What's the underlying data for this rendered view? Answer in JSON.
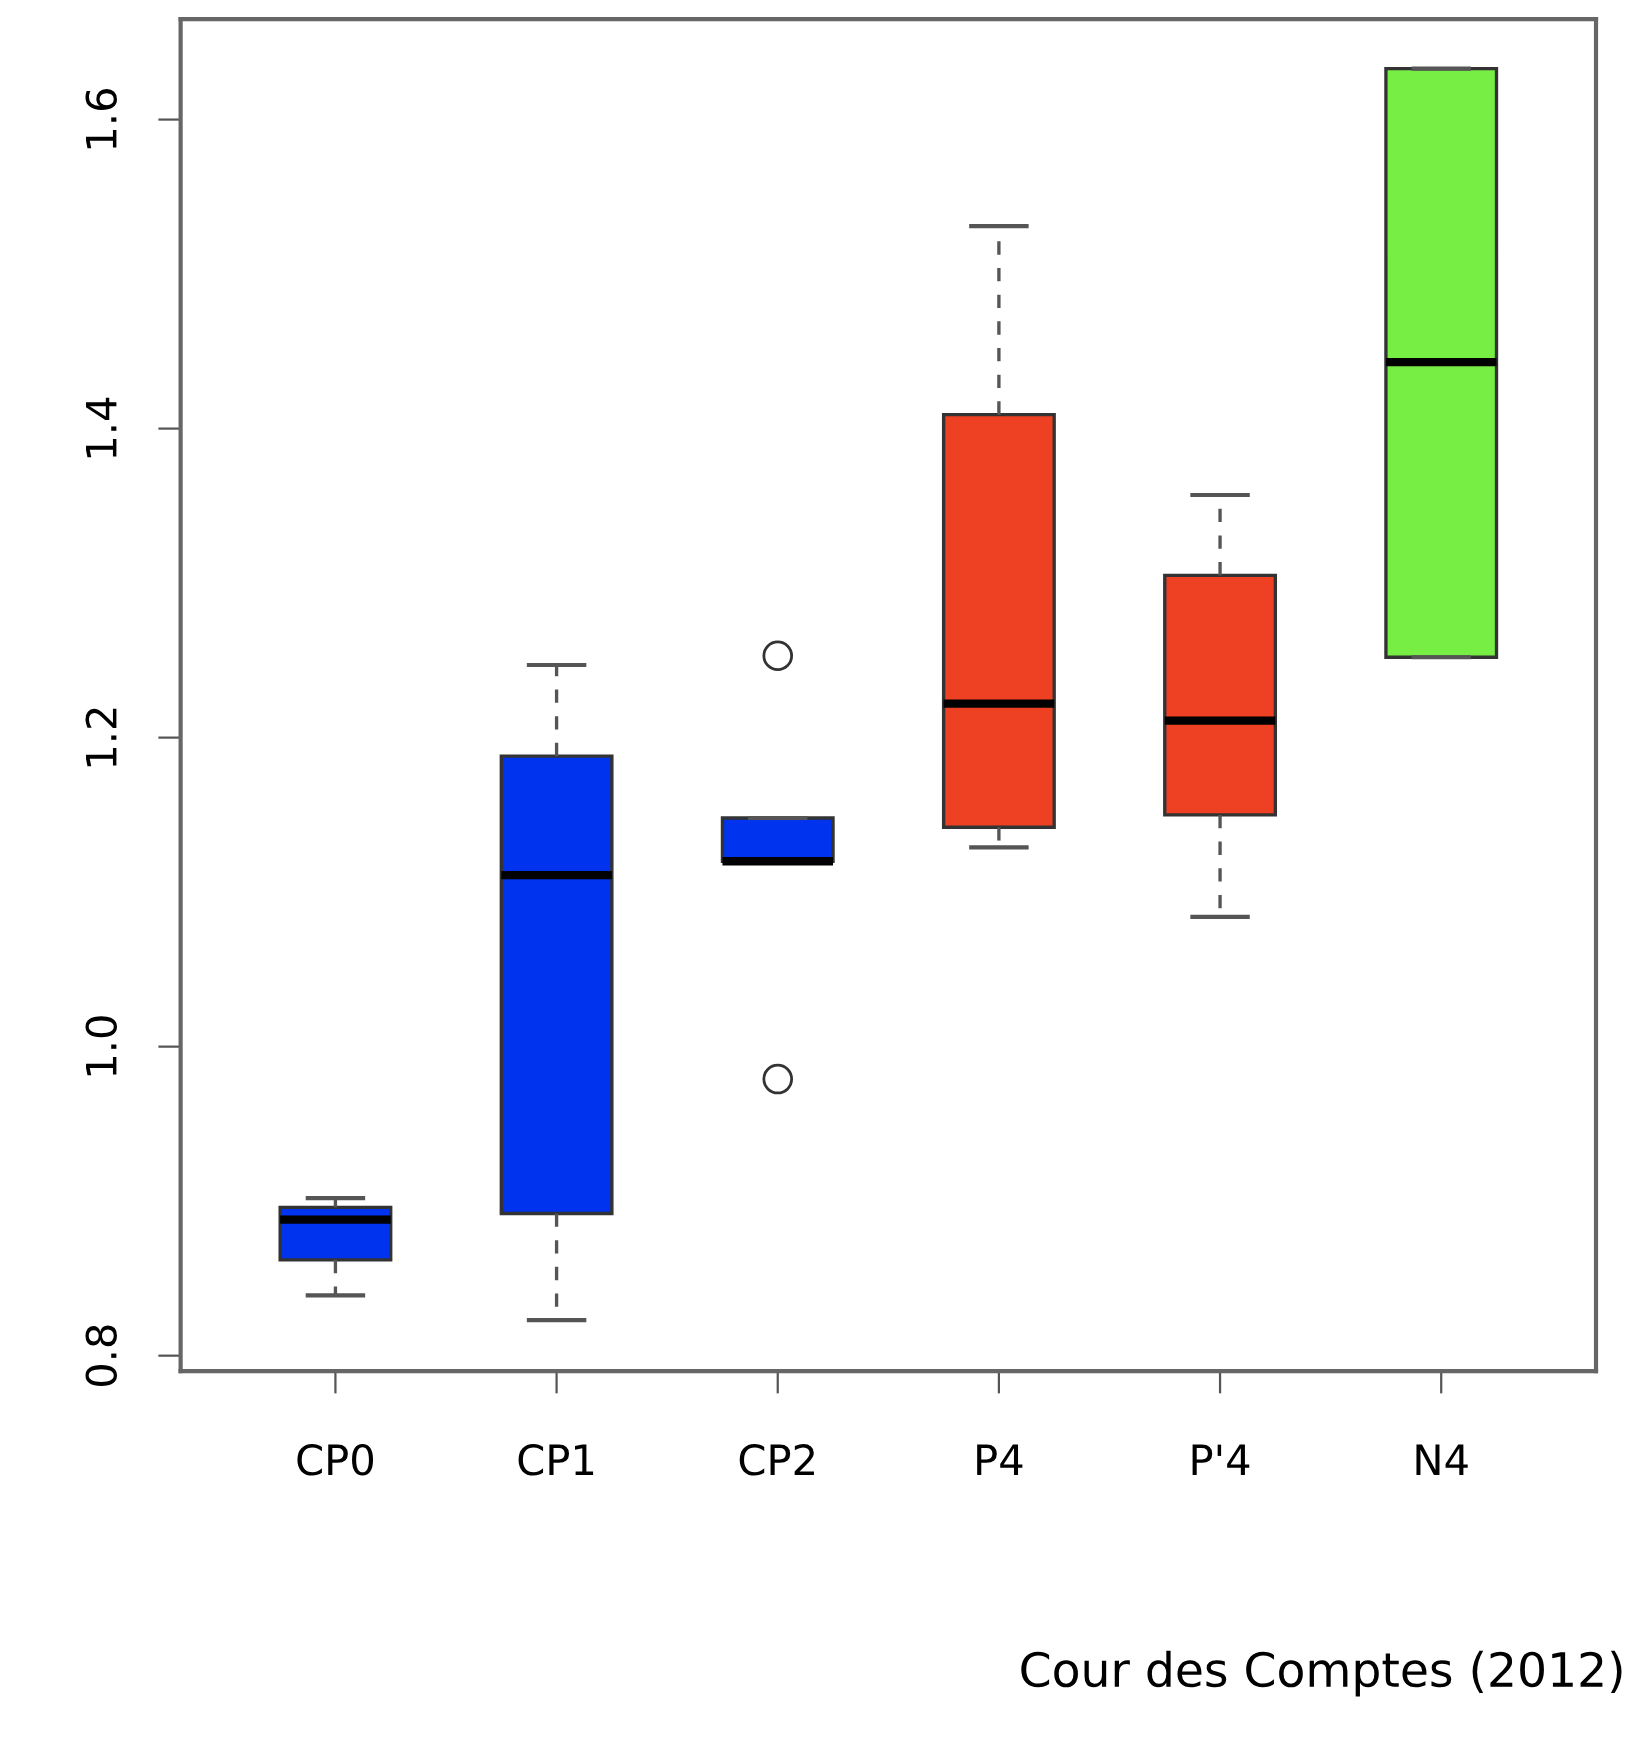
{
  "chart_data": {
    "type": "box",
    "categories": [
      "CP0",
      "CP1",
      "CP2",
      "P4",
      "P'4",
      "N4"
    ],
    "boxes": [
      {
        "low": 0.839,
        "q1": 0.862,
        "median": 0.888,
        "q3": 0.896,
        "high": 0.902
      },
      {
        "low": 0.823,
        "q1": 0.892,
        "median": 1.111,
        "q3": 1.188,
        "high": 1.247
      },
      {
        "low": 1.12,
        "q1": 1.12,
        "median": 1.12,
        "q3": 1.148,
        "high": 1.148,
        "outliers": [
          1.253,
          0.979
        ]
      },
      {
        "low": 1.129,
        "q1": 1.142,
        "median": 1.222,
        "q3": 1.409,
        "high": 1.531
      },
      {
        "low": 1.084,
        "q1": 1.15,
        "median": 1.211,
        "q3": 1.305,
        "high": 1.357
      },
      {
        "low": 1.252,
        "q1": 1.252,
        "median": 1.443,
        "q3": 1.633,
        "high": 1.633
      }
    ],
    "colors": [
      "#0033ee",
      "#0033ee",
      "#0033ee",
      "#ee4022",
      "#ee4022",
      "#77ee44"
    ],
    "ylim": [
      0.79,
      1.665
    ],
    "yticks": [
      {
        "value": 0.8,
        "label": "0.8"
      },
      {
        "value": 1.0,
        "label": "1.0"
      },
      {
        "value": 1.2,
        "label": "1.2"
      },
      {
        "value": 1.4,
        "label": "1.4"
      },
      {
        "value": 1.6,
        "label": "1.6"
      }
    ],
    "grid": false,
    "annotations": [
      "Cour des Comptes (2012)"
    ]
  }
}
